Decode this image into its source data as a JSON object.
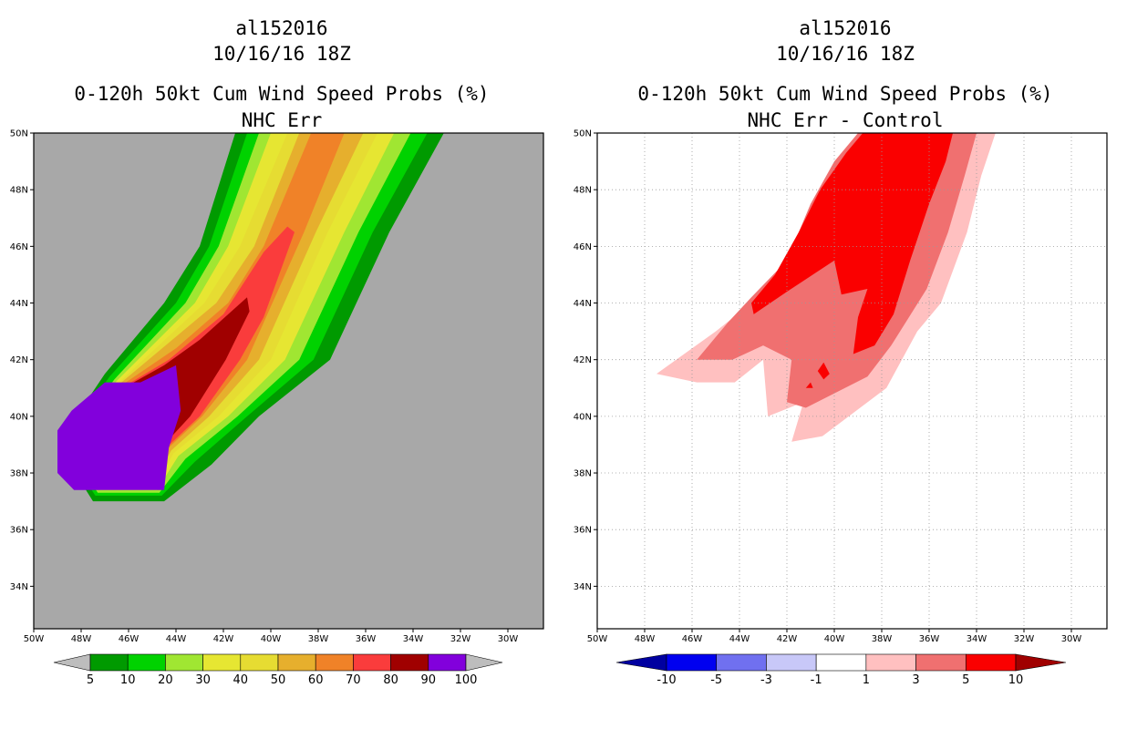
{
  "chart_data": [
    {
      "type": "heatmap",
      "storm_id": "al152016",
      "datetime": "10/16/16 18Z",
      "title": "0-120h 50kt Cum Wind Speed Probs (%)",
      "subtitle": "NHC Err",
      "x_ticks": [
        "50W",
        "48W",
        "46W",
        "44W",
        "42W",
        "40W",
        "38W",
        "36W",
        "34W",
        "32W",
        "30W"
      ],
      "y_ticks": [
        "50N",
        "48N",
        "46N",
        "44N",
        "42N",
        "40N",
        "38N",
        "36N",
        "34N"
      ],
      "xlim": [
        -50,
        -28.5
      ],
      "ylim": [
        32.5,
        50
      ],
      "background": "#a8a8a8",
      "colorbar": {
        "labels": [
          "5",
          "10",
          "20",
          "30",
          "40",
          "50",
          "60",
          "70",
          "80",
          "90",
          "100"
        ],
        "colors": [
          "#009a00",
          "#00d200",
          "#a0e632",
          "#e6e632",
          "#e6dc32",
          "#e6af2d",
          "#f08228",
          "#fa3c3c",
          "#a00000",
          "#8200dc"
        ]
      },
      "contours": [
        {
          "level": 5,
          "color": "#009a00",
          "poly": [
            [
              -49,
              39
            ],
            [
              -47,
              41.5
            ],
            [
              -44.5,
              44
            ],
            [
              -43,
              46
            ],
            [
              -41.5,
              50
            ],
            [
              -32.7,
              50
            ],
            [
              -35,
              46.5
            ],
            [
              -37.5,
              42
            ],
            [
              -40.5,
              40
            ],
            [
              -42.5,
              38.3
            ],
            [
              -44.5,
              37
            ],
            [
              -47.5,
              37
            ]
          ]
        },
        {
          "level": 10,
          "color": "#00d200",
          "poly": [
            [
              -48.8,
              39
            ],
            [
              -46.8,
              41.4
            ],
            [
              -44,
              44
            ],
            [
              -42.6,
              46
            ],
            [
              -41,
              50
            ],
            [
              -33.4,
              50
            ],
            [
              -35.7,
              46.5
            ],
            [
              -38.2,
              42
            ],
            [
              -41,
              40
            ],
            [
              -43.2,
              38.4
            ],
            [
              -44.6,
              37.2
            ],
            [
              -47.4,
              37.2
            ]
          ]
        },
        {
          "level": 20,
          "color": "#a0e632",
          "poly": [
            [
              -48.6,
              39
            ],
            [
              -46.6,
              41.3
            ],
            [
              -43.6,
              44
            ],
            [
              -42.2,
              46
            ],
            [
              -40.5,
              50
            ],
            [
              -34.1,
              50
            ],
            [
              -36.3,
              46.5
            ],
            [
              -38.8,
              42
            ],
            [
              -41.4,
              40
            ],
            [
              -43.6,
              38.5
            ],
            [
              -44.7,
              37.3
            ],
            [
              -47.3,
              37.3
            ]
          ]
        },
        {
          "level": 30,
          "color": "#e6e632",
          "poly": [
            [
              -48.5,
              39
            ],
            [
              -46.5,
              41.25
            ],
            [
              -43.2,
              44
            ],
            [
              -41.8,
              46
            ],
            [
              -40,
              50
            ],
            [
              -34.8,
              50
            ],
            [
              -36.9,
              46.5
            ],
            [
              -39.4,
              42
            ],
            [
              -41.8,
              40
            ],
            [
              -43.9,
              38.6
            ],
            [
              -44.8,
              37.4
            ],
            [
              -47.2,
              37.4
            ]
          ]
        },
        {
          "level": 40,
          "color": "#e6dc32",
          "poly": [
            [
              -48.4,
              39
            ],
            [
              -46.4,
              41.2
            ],
            [
              -42.8,
              44
            ],
            [
              -41.3,
              46
            ],
            [
              -39.3,
              50
            ],
            [
              -35.5,
              50
            ],
            [
              -37.6,
              46.5
            ],
            [
              -40,
              42
            ],
            [
              -42.2,
              40
            ],
            [
              -44.1,
              38.7
            ],
            [
              -44.9,
              37.5
            ],
            [
              -47.1,
              37.5
            ]
          ]
        },
        {
          "level": 50,
          "color": "#e6af2d",
          "poly": [
            [
              -48.3,
              39
            ],
            [
              -46.3,
              41.2
            ],
            [
              -42.3,
              44
            ],
            [
              -40.7,
              46
            ],
            [
              -38.8,
              50
            ],
            [
              -36.1,
              50
            ],
            [
              -38.1,
              46.5
            ],
            [
              -40.5,
              42
            ],
            [
              -42.6,
              40
            ],
            [
              -44.2,
              38.8
            ],
            [
              -45,
              37.6
            ],
            [
              -47,
              37.6
            ]
          ]
        },
        {
          "level": 60,
          "color": "#f08228",
          "poly": [
            [
              -48.2,
              39
            ],
            [
              -46.2,
              41.15
            ],
            [
              -44,
              42.4
            ],
            [
              -41.8,
              44
            ],
            [
              -40.3,
              46
            ],
            [
              -38.3,
              50
            ],
            [
              -36.9,
              50
            ],
            [
              -38.6,
              46.5
            ],
            [
              -41,
              42
            ],
            [
              -42.9,
              40
            ],
            [
              -44.3,
              38.9
            ],
            [
              -45,
              37.7
            ],
            [
              -46.9,
              37.7
            ]
          ]
        },
        {
          "level": 70,
          "color": "#fa3c3c",
          "poly": [
            [
              -48.1,
              39
            ],
            [
              -46.1,
              41.1
            ],
            [
              -44.3,
              42
            ],
            [
              -42,
              43.6
            ],
            [
              -40.3,
              45.8
            ],
            [
              -39.3,
              46.7
            ],
            [
              -39,
              46.5
            ],
            [
              -40.3,
              43.5
            ],
            [
              -41.3,
              42
            ],
            [
              -43,
              40
            ],
            [
              -44.4,
              38.9
            ],
            [
              -45.1,
              37.8
            ],
            [
              -46.8,
              37.8
            ]
          ]
        },
        {
          "level": 80,
          "color": "#a00000",
          "poly": [
            [
              -48,
              39
            ],
            [
              -46,
              41.1
            ],
            [
              -44.5,
              41.8
            ],
            [
              -43,
              42.7
            ],
            [
              -41,
              44.2
            ],
            [
              -40.9,
              43.7
            ],
            [
              -41.9,
              42
            ],
            [
              -43.4,
              40
            ],
            [
              -44.5,
              39
            ],
            [
              -45.1,
              37.9
            ],
            [
              -46.7,
              37.9
            ]
          ]
        },
        {
          "level": 90,
          "color": "#8200dc",
          "poly": [
            [
              -49,
              39.5
            ],
            [
              -48.4,
              40.2
            ],
            [
              -47,
              41.2
            ],
            [
              -45.5,
              41.2
            ],
            [
              -44,
              41.8
            ],
            [
              -43.8,
              40.2
            ],
            [
              -44.3,
              38.9
            ],
            [
              -44.5,
              37.4
            ],
            [
              -48.3,
              37.4
            ],
            [
              -49,
              38
            ]
          ]
        }
      ]
    },
    {
      "type": "heatmap",
      "storm_id": "al152016",
      "datetime": "10/16/16 18Z",
      "title": "0-120h 50kt Cum Wind Speed Probs (%)",
      "subtitle": "NHC Err - Control",
      "x_ticks": [
        "50W",
        "48W",
        "46W",
        "44W",
        "42W",
        "40W",
        "38W",
        "36W",
        "34W",
        "32W",
        "30W"
      ],
      "y_ticks": [
        "50N",
        "48N",
        "46N",
        "44N",
        "42N",
        "40N",
        "38N",
        "36N",
        "34N"
      ],
      "xlim": [
        -50,
        -28.5
      ],
      "ylim": [
        32.5,
        50
      ],
      "background": "#ffffff",
      "colorbar": {
        "labels": [
          "-10",
          "-5",
          "-3",
          "-1",
          "1",
          "3",
          "5",
          "10"
        ],
        "colors": [
          "#0000a0",
          "#0000f0",
          "#7070f0",
          "#c8c8f8",
          "#ffffff",
          "#ffc0c0",
          "#f07070",
          "#fa0000",
          "#a00000"
        ]
      },
      "contours": [
        {
          "level": 1,
          "color": "#ffc0c0",
          "poly": [
            [
              -47.5,
              41.5
            ],
            [
              -45,
              43
            ],
            [
              -43.5,
              44
            ],
            [
              -42.5,
              45
            ],
            [
              -41.8,
              46
            ],
            [
              -41,
              47
            ],
            [
              -40,
              48.5
            ],
            [
              -39,
              50
            ],
            [
              -33.2,
              50
            ],
            [
              -33.8,
              48.5
            ],
            [
              -34.4,
              46.5
            ],
            [
              -35.5,
              44
            ],
            [
              -36.5,
              43
            ],
            [
              -37.8,
              41
            ],
            [
              -40.5,
              39.3
            ],
            [
              -41.8,
              39.1
            ],
            [
              -41.3,
              40.5
            ],
            [
              -42.8,
              40
            ],
            [
              -43,
              42
            ],
            [
              -44.2,
              41.2
            ],
            [
              -45.8,
              41.2
            ]
          ]
        },
        {
          "level": 3,
          "color": "#f07070",
          "poly": [
            [
              -45.8,
              42
            ],
            [
              -44.5,
              43.3
            ],
            [
              -43.5,
              44.2
            ],
            [
              -42,
              45.5
            ],
            [
              -41,
              47.5
            ],
            [
              -40,
              49
            ],
            [
              -39,
              50
            ],
            [
              -34,
              50
            ],
            [
              -34.5,
              48.5
            ],
            [
              -35.2,
              46.5
            ],
            [
              -36.1,
              44.5
            ],
            [
              -37.6,
              42.5
            ],
            [
              -38.6,
              41.4
            ],
            [
              -41.2,
              40.3
            ],
            [
              -42,
              40.5
            ],
            [
              -41.8,
              42
            ],
            [
              -43,
              42.5
            ],
            [
              -44.3,
              42
            ]
          ]
        },
        {
          "level": 5,
          "color": "#fa0000",
          "poly": [
            [
              -43.5,
              44
            ],
            [
              -42.5,
              45
            ],
            [
              -41.5,
              46.5
            ],
            [
              -40.6,
              48
            ],
            [
              -39.5,
              49.3
            ],
            [
              -38.8,
              50
            ],
            [
              -35,
              50
            ],
            [
              -35.3,
              49
            ],
            [
              -36,
              47.5
            ],
            [
              -36.8,
              45.5
            ],
            [
              -37.5,
              43.6
            ],
            [
              -38.3,
              42.5
            ],
            [
              -39.2,
              42.2
            ],
            [
              -39,
              43.5
            ],
            [
              -38.6,
              44.5
            ],
            [
              -39.7,
              44.3
            ],
            [
              -40,
              45.5
            ],
            [
              -42,
              44.4
            ],
            [
              -43.4,
              43.6
            ]
          ]
        },
        {
          "level": 5,
          "color": "#fa0000",
          "poly": [
            [
              -41.2,
              41
            ],
            [
              -41,
              41.2
            ],
            [
              -40.9,
              41
            ]
          ]
        },
        {
          "level": 5,
          "color": "#fa0000",
          "poly": [
            [
              -40.7,
              41.6
            ],
            [
              -40.45,
              41.9
            ],
            [
              -40.2,
              41.5
            ],
            [
              -40.45,
              41.3
            ]
          ]
        }
      ]
    }
  ]
}
